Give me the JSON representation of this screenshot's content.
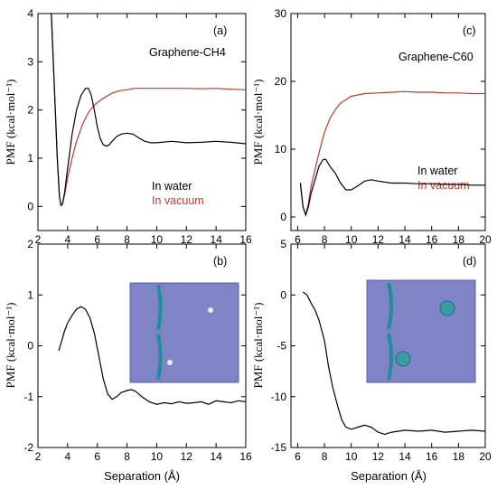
{
  "chart_data": [
    {
      "panel": "(a)",
      "type": "line",
      "title": "Graphene-CH4",
      "ylabel": "PMF (kcal·mol⁻¹)",
      "xlabel": "",
      "xlim": [
        2,
        16
      ],
      "ylim": [
        -0.5,
        4
      ],
      "xticks": [
        "2",
        "4",
        "6",
        "8",
        "10",
        "12",
        "14",
        "16"
      ],
      "yticks": [
        "0",
        "1",
        "2",
        "3",
        "4"
      ],
      "legend": [
        "In water",
        "In vacuum"
      ],
      "legend_placement": "bottom-right",
      "series": [
        {
          "name": "In water",
          "color": "#000000",
          "x": [
            2.9,
            3.1,
            3.3,
            3.45,
            3.55,
            3.65,
            3.8,
            4.0,
            4.3,
            4.6,
            4.9,
            5.2,
            5.4,
            5.6,
            5.8,
            6.0,
            6.2,
            6.4,
            6.6,
            6.8,
            7.0,
            7.3,
            7.6,
            8.0,
            8.4,
            8.8,
            9.2,
            9.6,
            10.0,
            11.0,
            12.0,
            13.0,
            14.0,
            15.0,
            16.0
          ],
          "y": [
            4.0,
            2.5,
            1.0,
            0.2,
            0.02,
            0.05,
            0.3,
            0.8,
            1.5,
            2.0,
            2.3,
            2.45,
            2.45,
            2.3,
            2.0,
            1.65,
            1.4,
            1.28,
            1.25,
            1.28,
            1.35,
            1.45,
            1.5,
            1.52,
            1.5,
            1.42,
            1.35,
            1.32,
            1.32,
            1.35,
            1.32,
            1.33,
            1.35,
            1.33,
            1.3
          ]
        },
        {
          "name": "In vacuum",
          "color": "#c0392b",
          "x": [
            2.9,
            3.1,
            3.3,
            3.45,
            3.55,
            3.65,
            3.8,
            4.0,
            4.3,
            4.6,
            5.0,
            5.4,
            5.8,
            6.2,
            6.6,
            7.0,
            7.5,
            8.0,
            8.5,
            9.0,
            10.0,
            11.0,
            12.0,
            13.0,
            14.0,
            15.0,
            16.0
          ],
          "y": [
            4.0,
            2.5,
            1.0,
            0.2,
            0.02,
            0.05,
            0.25,
            0.6,
            1.0,
            1.35,
            1.7,
            1.95,
            2.1,
            2.2,
            2.28,
            2.35,
            2.4,
            2.42,
            2.45,
            2.45,
            2.45,
            2.45,
            2.45,
            2.44,
            2.45,
            2.43,
            2.42
          ]
        }
      ]
    },
    {
      "panel": "(c)",
      "type": "line",
      "title": "Graphene-C60",
      "ylabel": "PMF (kcal·mol⁻¹)",
      "xlabel": "",
      "xlim": [
        5.5,
        20
      ],
      "ylim": [
        -2,
        30
      ],
      "xticks": [
        "6",
        "8",
        "10",
        "12",
        "14",
        "16",
        "18",
        "20"
      ],
      "yticks": [
        "0",
        "10",
        "20",
        "30"
      ],
      "legend": [
        "In water",
        "In vacuum"
      ],
      "legend_placement": "bottom-right",
      "series": [
        {
          "name": "In water",
          "color": "#000000",
          "x": [
            6.2,
            6.4,
            6.6,
            6.8,
            7.0,
            7.3,
            7.6,
            7.9,
            8.1,
            8.4,
            8.8,
            9.2,
            9.6,
            10.0,
            10.5,
            11.0,
            11.5,
            12.0,
            13.0,
            14.0,
            15.0,
            16.0,
            17.0,
            18.0,
            19.0,
            20.0
          ],
          "y": [
            5.0,
            1.5,
            0.3,
            1.5,
            3.5,
            5.5,
            7.5,
            8.5,
            8.5,
            7.5,
            6.5,
            5.0,
            4.0,
            4.0,
            4.6,
            5.3,
            5.5,
            5.3,
            5.0,
            5.0,
            4.9,
            4.9,
            4.8,
            4.8,
            4.7,
            4.7
          ]
        },
        {
          "name": "In vacuum",
          "color": "#c0392b",
          "x": [
            6.2,
            6.4,
            6.6,
            6.8,
            7.0,
            7.3,
            7.6,
            8.0,
            8.4,
            8.8,
            9.2,
            9.6,
            10.0,
            10.5,
            11.0,
            12.0,
            13.0,
            14.0,
            15.0,
            16.0,
            17.0,
            18.0,
            19.0,
            20.0
          ],
          "y": [
            5.0,
            1.5,
            0.3,
            2.0,
            4.5,
            7.0,
            9.5,
            12.5,
            14.5,
            15.8,
            16.8,
            17.3,
            17.8,
            18.0,
            18.2,
            18.3,
            18.4,
            18.5,
            18.4,
            18.4,
            18.3,
            18.3,
            18.2,
            18.2
          ]
        }
      ]
    },
    {
      "panel": "(b)",
      "type": "line",
      "ylabel": "PMF (kcal·mol⁻¹)",
      "xlabel": "Separation (Å)",
      "xlim": [
        2,
        16
      ],
      "ylim": [
        -2,
        2
      ],
      "xticks": [
        "2",
        "4",
        "6",
        "8",
        "10",
        "12",
        "14",
        "16"
      ],
      "yticks": [
        "-2",
        "-1",
        "0",
        "1",
        "2"
      ],
      "series": [
        {
          "name": "",
          "color": "#000000",
          "x": [
            3.4,
            3.6,
            3.8,
            4.0,
            4.3,
            4.6,
            4.9,
            5.2,
            5.5,
            5.8,
            6.1,
            6.4,
            6.7,
            7.0,
            7.3,
            7.6,
            8.0,
            8.3,
            8.6,
            9.0,
            9.5,
            10.0,
            10.5,
            11.0,
            11.5,
            12.0,
            12.5,
            13.0,
            13.5,
            14.0,
            14.5,
            15.0,
            15.5,
            16.0
          ],
          "y": [
            -0.1,
            0.1,
            0.3,
            0.45,
            0.6,
            0.72,
            0.77,
            0.72,
            0.55,
            0.25,
            -0.2,
            -0.65,
            -0.95,
            -1.05,
            -1.0,
            -0.92,
            -0.88,
            -0.86,
            -0.9,
            -1.0,
            -1.1,
            -1.15,
            -1.12,
            -1.14,
            -1.1,
            -1.13,
            -1.12,
            -1.1,
            -1.15,
            -1.08,
            -1.1,
            -1.12,
            -1.08,
            -1.1
          ]
        }
      ]
    },
    {
      "panel": "(d)",
      "type": "line",
      "ylabel": "PMF (kcal·mol⁻¹)",
      "xlabel": "Separation (Å)",
      "xlim": [
        5.5,
        20
      ],
      "ylim": [
        -15,
        5
      ],
      "xticks": [
        "6",
        "8",
        "10",
        "12",
        "14",
        "16",
        "18",
        "20"
      ],
      "yticks": [
        "-15",
        "-10",
        "-5",
        "0",
        "5"
      ],
      "series": [
        {
          "name": "",
          "color": "#000000",
          "x": [
            6.4,
            6.7,
            7.0,
            7.3,
            7.6,
            8.0,
            8.3,
            8.6,
            9.0,
            9.3,
            9.6,
            10.0,
            10.5,
            11.0,
            11.5,
            12.0,
            12.5,
            13.0,
            13.5,
            14.0,
            15.0,
            16.0,
            17.0,
            18.0,
            19.0,
            20.0
          ],
          "y": [
            0.3,
            0.0,
            -0.8,
            -1.5,
            -2.5,
            -4.5,
            -7.0,
            -9.0,
            -11.0,
            -12.3,
            -13.0,
            -13.2,
            -13.0,
            -12.8,
            -13.0,
            -13.5,
            -13.7,
            -13.5,
            -13.4,
            -13.3,
            -13.4,
            -13.3,
            -13.5,
            -13.4,
            -13.3,
            -13.4
          ]
        }
      ]
    }
  ]
}
